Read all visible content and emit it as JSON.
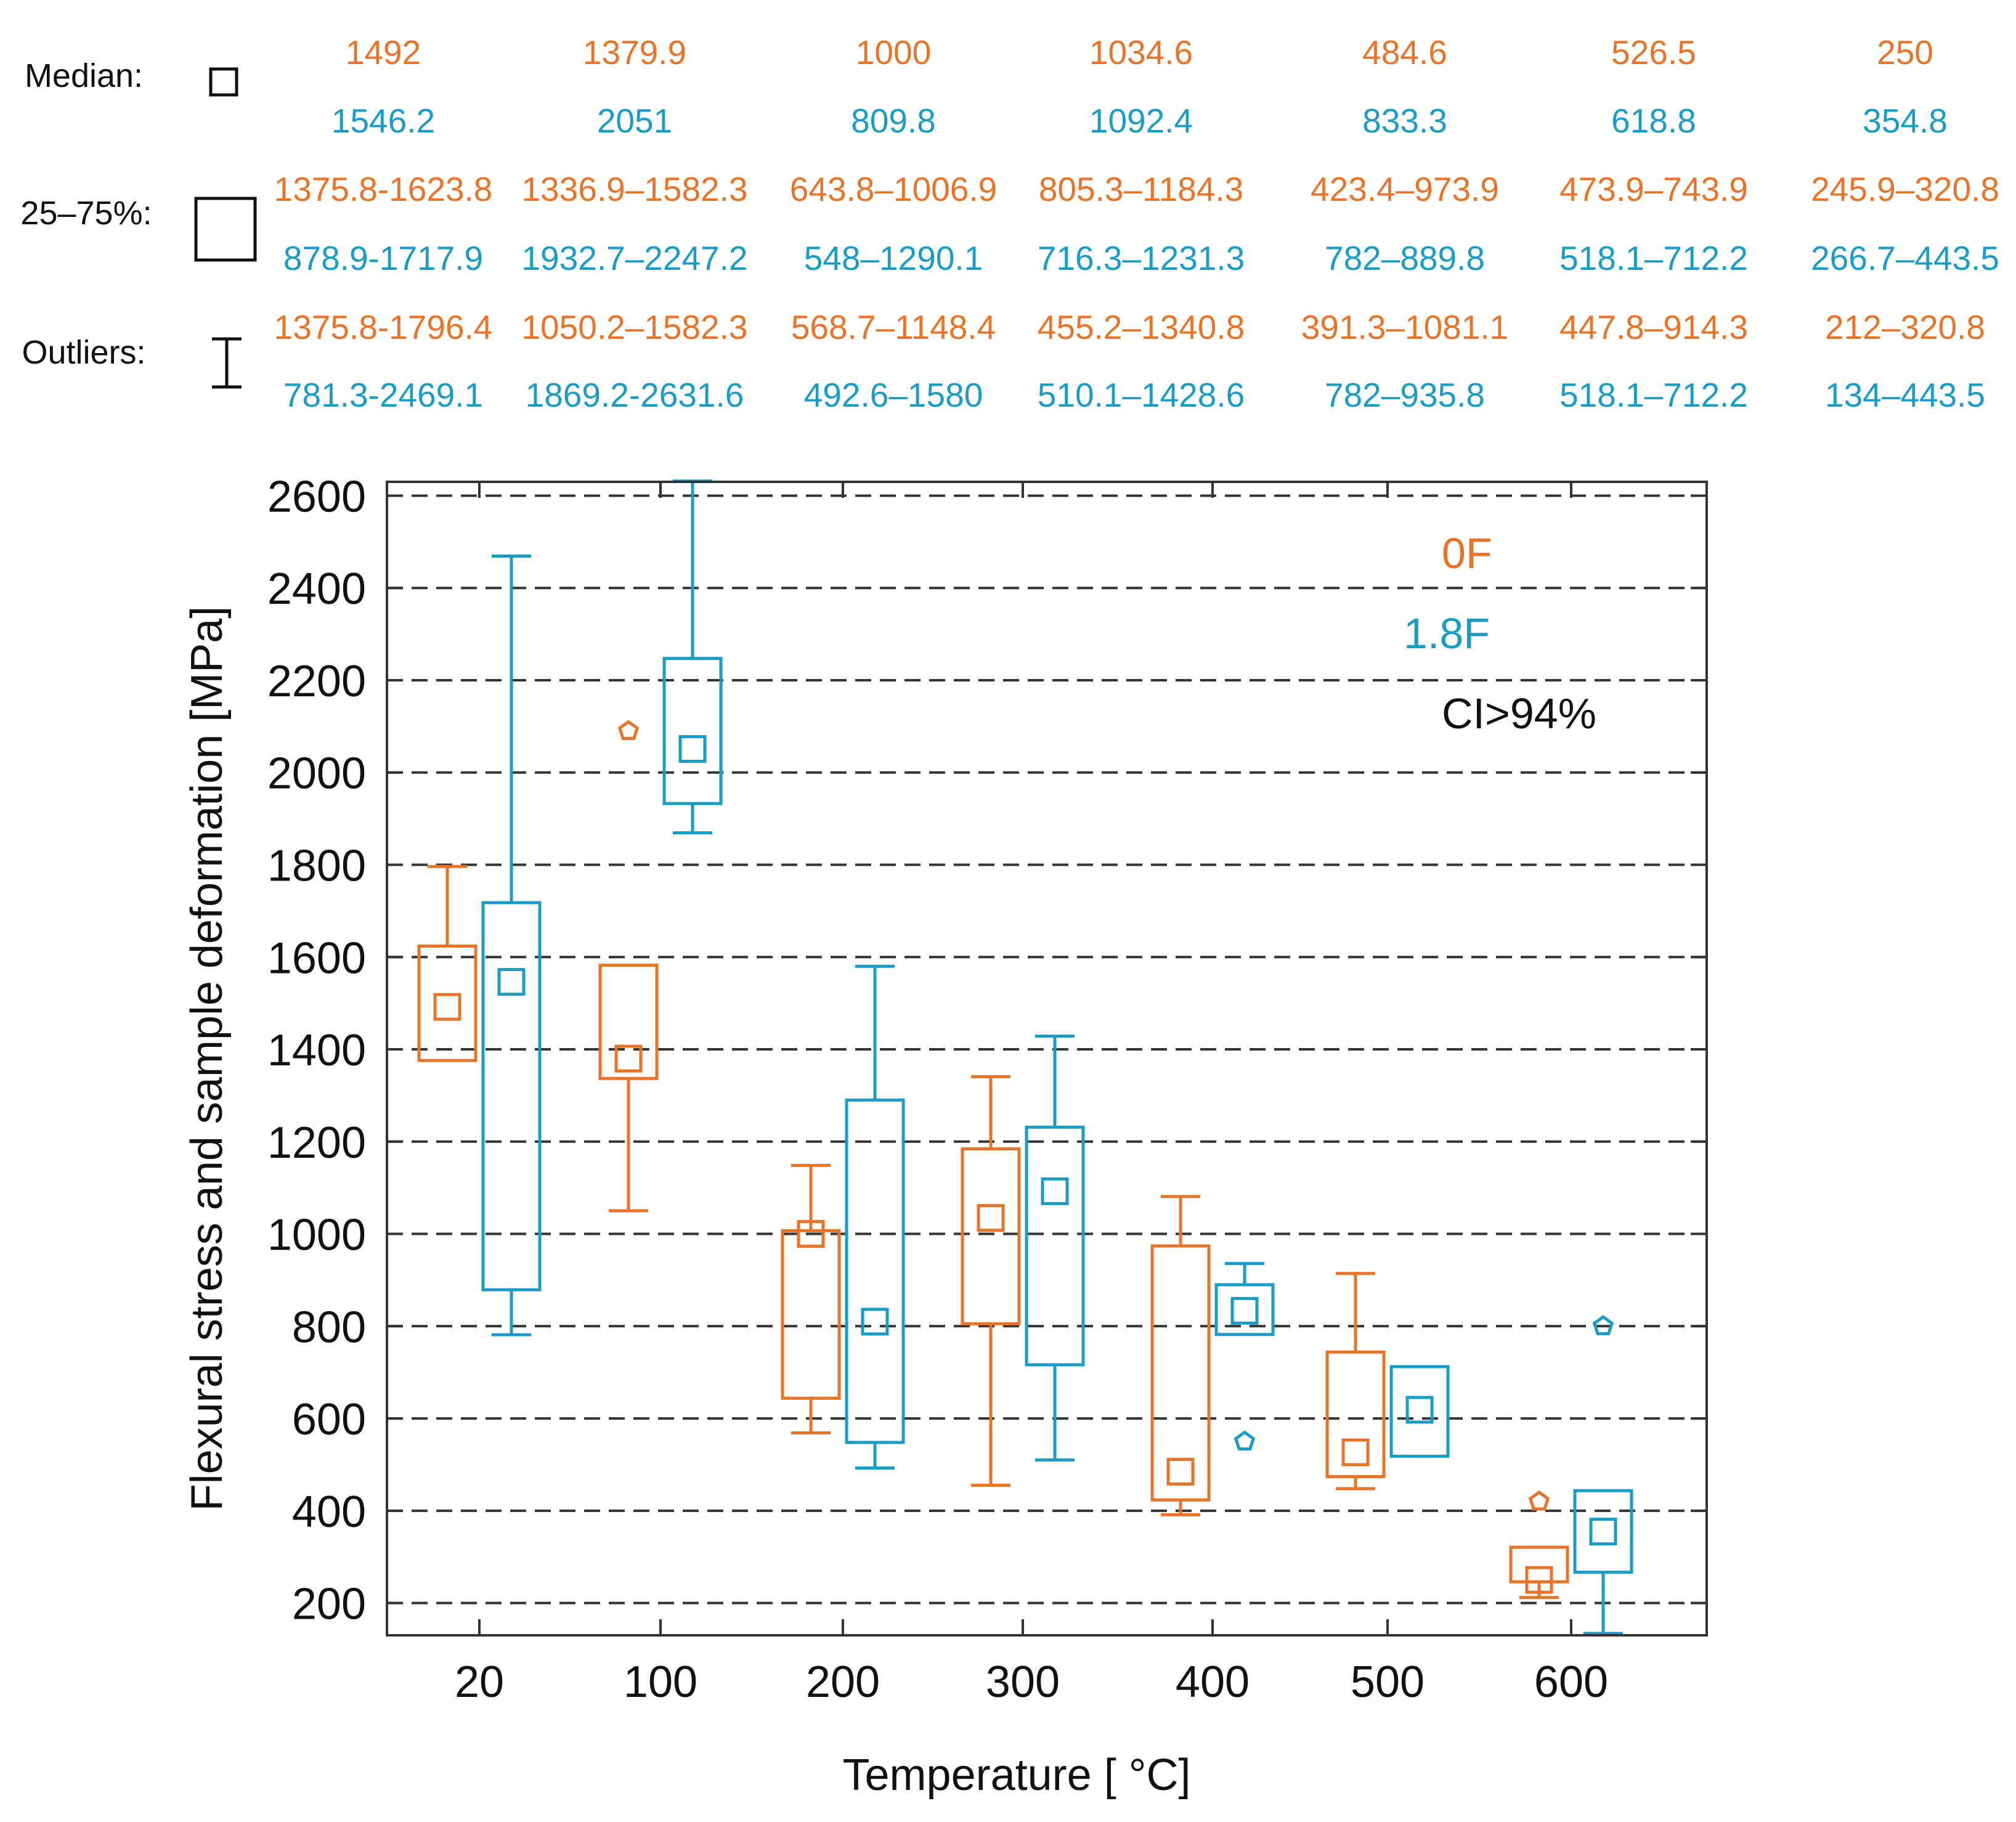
{
  "colors": {
    "orange": "#E8742A",
    "blue": "#1A9CC4",
    "black": "#222222",
    "grid": "#333333"
  },
  "legend_table": {
    "rows": [
      {
        "label": "Median:",
        "symbol": "median-square",
        "orange": [
          "1492",
          "1379.9",
          "1000",
          "1034.6",
          "484.6",
          "526.5",
          "250"
        ],
        "blue": [
          "1546.2",
          "2051",
          "809.8",
          "1092.4",
          "833.3",
          "618.8",
          "354.8"
        ]
      },
      {
        "label": "25–75%:",
        "symbol": "iqr-box",
        "orange": [
          "1375.8-1623.8",
          "1336.9–1582.3",
          "643.8–1006.9",
          "805.3–1184.3",
          "423.4–973.9",
          "473.9–743.9",
          "245.9–320.8"
        ],
        "blue": [
          "878.9-1717.9",
          "1932.7–2247.2",
          "548–1290.1",
          "716.3–1231.3",
          "782–889.8",
          "518.1–712.2",
          "266.7–443.5"
        ]
      },
      {
        "label": "Outliers:",
        "symbol": "whisker",
        "orange": [
          "1375.8-1796.4",
          "1050.2–1582.3",
          "568.7–1148.4",
          "455.2–1340.8",
          "391.3–1081.1",
          "447.8–914.3",
          "212–320.8"
        ],
        "blue": [
          "781.3-2469.1",
          "1869.2-2631.6",
          "492.6–1580",
          "510.1–1428.6",
          "782–935.8",
          "518.1–712.2",
          "134–443.5"
        ]
      }
    ]
  },
  "chart_data": {
    "type": "box",
    "xlabel": "Temperature [ °C]",
    "ylabel": "Flexural stress and sample deformation [MPa]",
    "categories": [
      "20",
      "100",
      "200",
      "300",
      "400",
      "500",
      "600"
    ],
    "ylim": [
      130,
      2630
    ],
    "yticks": [
      200,
      400,
      600,
      800,
      1000,
      1200,
      1400,
      1600,
      1800,
      2000,
      2200,
      2400,
      2600
    ],
    "grid": "horizontal dashed",
    "annotations": [
      "0F",
      "1.8F",
      "CI>94%"
    ],
    "series": [
      {
        "name": "0F",
        "color": "#E8742A",
        "median": [
          1492,
          1379.9,
          1000,
          1034.6,
          484.6,
          526.5,
          250
        ],
        "q1": [
          1375.8,
          1336.9,
          643.8,
          805.3,
          423.4,
          473.9,
          245.9
        ],
        "q3": [
          1623.8,
          1582.3,
          1006.9,
          1184.3,
          973.9,
          743.9,
          320.8
        ],
        "whisker_low": [
          1375.8,
          1050.2,
          568.7,
          455.2,
          391.3,
          447.8,
          212
        ],
        "whisker_high": [
          1796.4,
          1582.3,
          1148.4,
          1340.8,
          1081.1,
          914.3,
          320.8
        ],
        "outliers": [
          [],
          [
            2090
          ],
          [],
          [],
          [],
          [],
          [
            420
          ]
        ]
      },
      {
        "name": "1.8F",
        "color": "#1A9CC4",
        "median": [
          1546.2,
          2051,
          809.8,
          1092.4,
          833.3,
          618.8,
          354.8
        ],
        "q1": [
          878.9,
          1932.7,
          548,
          716.3,
          782,
          518.1,
          266.7
        ],
        "q3": [
          1717.9,
          2247.2,
          1290.1,
          1231.3,
          889.8,
          712.2,
          443.5
        ],
        "whisker_low": [
          781.3,
          1869.2,
          492.6,
          510.1,
          782,
          518.1,
          134
        ],
        "whisker_high": [
          2469.1,
          2631.6,
          1580,
          1428.6,
          935.8,
          712.2,
          443.5
        ],
        "outliers": [
          [],
          [],
          [],
          [],
          [
            550
          ],
          [],
          [
            800
          ]
        ]
      }
    ]
  }
}
